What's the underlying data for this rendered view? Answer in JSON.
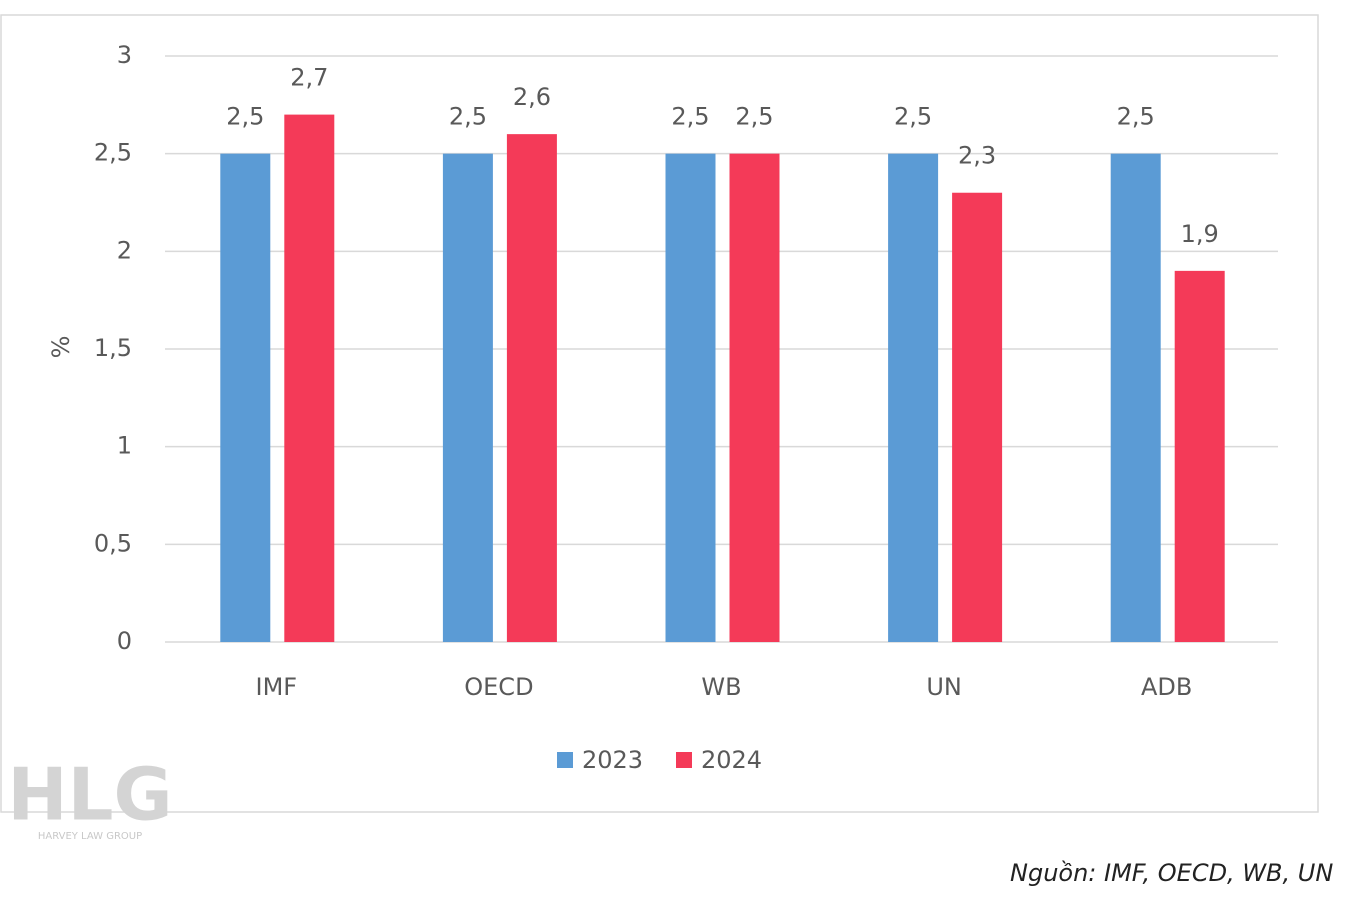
{
  "chart_data": {
    "type": "bar",
    "y_label": "%",
    "categories": [
      "IMF",
      "OECD",
      "WB",
      "UN",
      "ADB"
    ],
    "series": [
      {
        "name": "2023",
        "color": "#5b9bd5",
        "values": [
          2.5,
          2.5,
          2.5,
          2.5,
          2.5
        ],
        "value_labels": [
          "2,5",
          "2,5",
          "2,5",
          "2,5",
          "2,5"
        ]
      },
      {
        "name": "2024",
        "color": "#f43a58",
        "values": [
          2.7,
          2.6,
          2.5,
          2.3,
          1.9
        ],
        "value_labels": [
          "2,7",
          "2,6",
          "2,5",
          "2,3",
          "1,9"
        ]
      }
    ],
    "ylim": [
      0,
      3
    ],
    "yticks": [
      0,
      {
        "value": 0.5,
        "label": "0,5"
      },
      1,
      {
        "value": 1.5,
        "label": "1,5"
      },
      2,
      {
        "value": 2.5,
        "label": "2,5"
      },
      3
    ],
    "grid": true,
    "legend": "bottom"
  },
  "logo": {
    "mark": "HLG",
    "name": "HARVEY LAW GROUP"
  },
  "source": "Nguồn: IMF, OECD, WB, UN"
}
